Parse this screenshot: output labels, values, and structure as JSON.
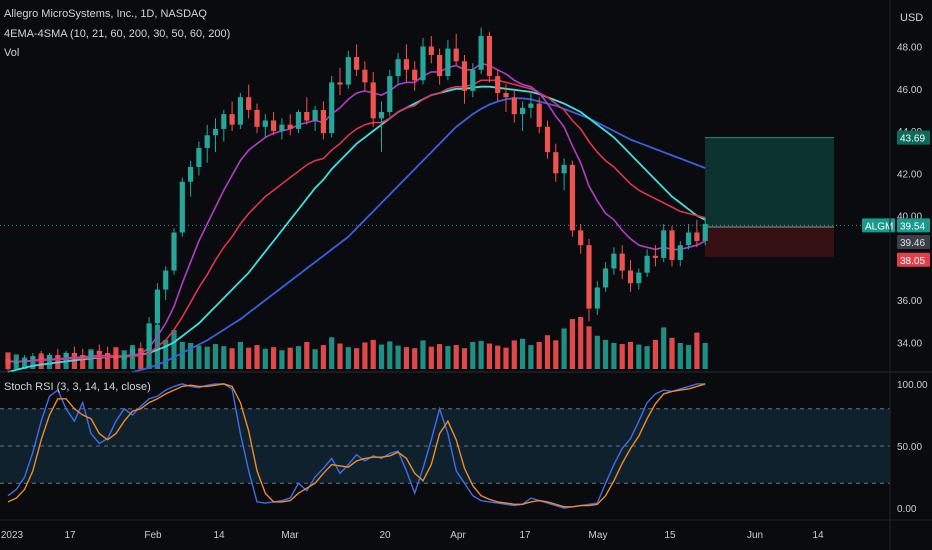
{
  "header": {
    "title": "Allegro MicroSystems, Inc., 1D, NASDAQ",
    "indicator": "4EMA-4SMA (10, 21, 60, 200, 30, 50, 60, 200)",
    "volume_label": "Vol",
    "currency": "USD",
    "stoch_label": "Stoch RSI (3, 3, 14, 14, close)"
  },
  "colors": {
    "bg": "#0a0b0f",
    "up": "#26a69a",
    "down": "#ef5350",
    "vol_up": "#1f8f84",
    "vol_down": "#e0484a",
    "ema10": "#b43cc8",
    "ema21": "#e0334f",
    "sma30": "#3ee0e0",
    "sma50": "#3a5fe0",
    "k_line": "#3f6ee8",
    "d_line": "#ef8a2c",
    "stoch_band": "#0e2431",
    "target_zone": "#0d3a33",
    "stop_zone": "#3b1215"
  },
  "chart_data": [
    {
      "type": "candlestick",
      "title": "Allegro MicroSystems, Inc., 1D, NASDAQ",
      "ylabel": "USD",
      "ylim": [
        32.6,
        50.2
      ],
      "y_ticks": [
        "48.00",
        "46.00",
        "44.00",
        "42.00",
        "40.00",
        "38.00",
        "36.00",
        "34.00"
      ],
      "x_ticks": [
        "2023",
        "17",
        "Feb",
        "14",
        "Mar",
        "20",
        "Apr",
        "17",
        "May",
        "15",
        "Jun",
        "14"
      ],
      "price_tags": {
        "symbol": "ALGM",
        "last": "39.54",
        "target": "43.69",
        "entry": "39.46",
        "stop": "38.05"
      },
      "ohlc": [
        [
          33.2,
          33.4,
          32.6,
          33.0
        ],
        [
          33.0,
          33.3,
          32.7,
          33.1
        ],
        [
          33.1,
          33.4,
          32.8,
          33.2
        ],
        [
          33.2,
          33.5,
          32.9,
          33.3
        ],
        [
          33.3,
          33.6,
          33.0,
          33.2
        ],
        [
          33.2,
          33.5,
          32.9,
          33.4
        ],
        [
          33.4,
          33.7,
          33.1,
          33.3
        ],
        [
          33.3,
          33.6,
          33.0,
          33.5
        ],
        [
          33.5,
          33.8,
          33.2,
          33.4
        ],
        [
          33.4,
          33.7,
          33.1,
          33.3
        ],
        [
          33.3,
          33.6,
          33.0,
          33.6
        ],
        [
          33.6,
          33.9,
          33.3,
          33.5
        ],
        [
          33.5,
          33.8,
          33.2,
          33.4
        ],
        [
          33.4,
          33.7,
          33.1,
          33.2
        ],
        [
          33.2,
          33.5,
          32.9,
          33.4
        ],
        [
          33.4,
          33.8,
          33.2,
          33.7
        ],
        [
          33.7,
          34.0,
          33.4,
          33.6
        ],
        [
          33.6,
          35.2,
          33.5,
          34.9
        ],
        [
          34.9,
          36.8,
          34.6,
          36.5
        ],
        [
          36.5,
          37.6,
          36.0,
          37.4
        ],
        [
          37.4,
          39.4,
          37.2,
          39.2
        ],
        [
          39.2,
          41.8,
          39.0,
          41.6
        ],
        [
          41.6,
          42.6,
          40.9,
          42.3
        ],
        [
          42.3,
          43.5,
          41.9,
          43.2
        ],
        [
          43.2,
          44.3,
          42.5,
          43.8
        ],
        [
          43.8,
          44.6,
          43.0,
          44.1
        ],
        [
          44.1,
          45.0,
          43.5,
          44.8
        ],
        [
          44.8,
          45.4,
          44.0,
          44.3
        ],
        [
          44.3,
          45.8,
          44.1,
          45.6
        ],
        [
          45.6,
          46.2,
          44.6,
          45.0
        ],
        [
          45.0,
          45.3,
          43.9,
          44.2
        ],
        [
          44.2,
          44.8,
          43.7,
          44.5
        ],
        [
          44.5,
          44.9,
          43.8,
          44.0
        ],
        [
          44.0,
          44.6,
          43.6,
          44.3
        ],
        [
          44.3,
          44.8,
          43.8,
          44.1
        ],
        [
          44.1,
          45.0,
          43.9,
          44.9
        ],
        [
          44.9,
          45.6,
          44.3,
          44.5
        ],
        [
          44.5,
          45.2,
          44.0,
          45.0
        ],
        [
          45.0,
          45.4,
          43.6,
          43.9
        ],
        [
          43.9,
          46.6,
          43.7,
          46.3
        ],
        [
          46.3,
          47.0,
          45.7,
          46.2
        ],
        [
          46.2,
          47.8,
          46.0,
          47.5
        ],
        [
          47.5,
          48.1,
          46.6,
          46.9
        ],
        [
          46.9,
          47.3,
          45.9,
          46.3
        ],
        [
          46.3,
          46.8,
          44.2,
          44.6
        ],
        [
          44.6,
          45.4,
          43.0,
          44.9
        ],
        [
          44.9,
          46.9,
          44.7,
          46.6
        ],
        [
          46.6,
          47.7,
          46.2,
          47.4
        ],
        [
          47.4,
          48.1,
          46.3,
          46.9
        ],
        [
          46.9,
          47.3,
          45.9,
          46.4
        ],
        [
          46.4,
          48.4,
          46.2,
          48.0
        ],
        [
          48.0,
          48.5,
          47.2,
          47.6
        ],
        [
          47.6,
          47.9,
          46.2,
          46.6
        ],
        [
          46.6,
          48.3,
          46.4,
          47.9
        ],
        [
          47.9,
          48.6,
          47.1,
          47.3
        ],
        [
          47.3,
          47.6,
          45.3,
          45.9
        ],
        [
          45.9,
          47.2,
          45.6,
          46.9
        ],
        [
          46.9,
          48.9,
          46.7,
          48.5
        ],
        [
          48.5,
          48.7,
          46.3,
          46.6
        ],
        [
          46.6,
          46.9,
          45.4,
          45.8
        ],
        [
          45.8,
          46.2,
          44.9,
          45.6
        ],
        [
          45.6,
          46.0,
          44.4,
          44.8
        ],
        [
          44.8,
          45.4,
          44.0,
          45.1
        ],
        [
          45.1,
          45.9,
          44.6,
          45.3
        ],
        [
          45.3,
          45.6,
          43.9,
          44.2
        ],
        [
          44.2,
          44.5,
          42.7,
          43.0
        ],
        [
          43.0,
          43.4,
          41.6,
          42.0
        ],
        [
          42.0,
          42.7,
          41.2,
          42.4
        ],
        [
          42.4,
          42.6,
          39.0,
          39.3
        ],
        [
          39.3,
          39.6,
          38.2,
          38.6
        ],
        [
          38.6,
          38.9,
          35.0,
          35.6
        ],
        [
          35.6,
          36.9,
          35.3,
          36.6
        ],
        [
          36.6,
          37.8,
          36.4,
          37.5
        ],
        [
          37.5,
          38.5,
          37.2,
          38.2
        ],
        [
          38.2,
          38.6,
          37.0,
          37.4
        ],
        [
          37.4,
          37.9,
          36.4,
          36.8
        ],
        [
          36.8,
          37.5,
          36.5,
          37.3
        ],
        [
          37.3,
          38.4,
          37.1,
          38.1
        ],
        [
          38.1,
          38.6,
          37.6,
          38.0
        ],
        [
          38.0,
          39.6,
          37.8,
          39.3
        ],
        [
          39.3,
          39.5,
          37.6,
          37.9
        ],
        [
          37.9,
          38.8,
          37.6,
          38.6
        ],
        [
          38.6,
          39.6,
          38.4,
          39.2
        ],
        [
          39.2,
          39.8,
          38.5,
          38.8
        ],
        [
          38.8,
          39.9,
          38.6,
          39.6
        ]
      ],
      "vol": [
        0.32,
        0.28,
        0.22,
        0.25,
        0.3,
        0.27,
        0.24,
        0.31,
        0.29,
        0.26,
        0.38,
        0.33,
        0.3,
        0.42,
        0.36,
        0.46,
        0.4,
        0.62,
        0.85,
        0.56,
        0.75,
        0.52,
        0.5,
        0.45,
        0.43,
        0.48,
        0.44,
        0.4,
        0.52,
        0.41,
        0.46,
        0.39,
        0.42,
        0.36,
        0.41,
        0.44,
        0.52,
        0.38,
        0.46,
        0.61,
        0.49,
        0.42,
        0.4,
        0.51,
        0.56,
        0.47,
        0.53,
        0.45,
        0.42,
        0.4,
        0.55,
        0.43,
        0.48,
        0.44,
        0.46,
        0.4,
        0.52,
        0.54,
        0.49,
        0.45,
        0.41,
        0.55,
        0.58,
        0.46,
        0.52,
        0.65,
        0.55,
        0.78,
        0.96,
        1.0,
        0.82,
        0.64,
        0.56,
        0.5,
        0.48,
        0.52,
        0.47,
        0.44,
        0.56,
        0.8,
        0.6,
        0.5,
        0.46,
        0.7,
        0.5
      ],
      "ema10": [
        33.1,
        33.1,
        33.1,
        33.15,
        33.2,
        33.2,
        33.22,
        33.26,
        33.3,
        33.3,
        33.35,
        33.38,
        33.38,
        33.35,
        33.36,
        33.42,
        33.45,
        33.75,
        34.3,
        34.9,
        35.7,
        36.8,
        37.8,
        38.8,
        39.6,
        40.4,
        41.2,
        41.9,
        42.6,
        43.1,
        43.4,
        43.7,
        43.9,
        44.0,
        44.1,
        44.3,
        44.4,
        44.5,
        44.4,
        44.8,
        45.1,
        45.5,
        45.8,
        45.9,
        45.8,
        45.7,
        45.9,
        46.2,
        46.3,
        46.3,
        46.6,
        46.8,
        46.8,
        47.0,
        47.1,
        46.9,
        46.9,
        47.2,
        47.1,
        46.9,
        46.7,
        46.4,
        46.2,
        46.1,
        45.8,
        45.3,
        44.7,
        44.2,
        43.3,
        42.5,
        41.4,
        40.7,
        40.1,
        39.8,
        39.3,
        38.9,
        38.6,
        38.5,
        38.4,
        38.5,
        38.4,
        38.4,
        38.5,
        38.6,
        38.8
      ],
      "ema21": [
        33.1,
        33.1,
        33.1,
        33.12,
        33.15,
        33.17,
        33.19,
        33.21,
        33.24,
        33.25,
        33.28,
        33.3,
        33.31,
        33.3,
        33.31,
        33.35,
        33.37,
        33.5,
        33.8,
        34.1,
        34.6,
        35.2,
        35.9,
        36.6,
        37.2,
        37.9,
        38.5,
        39.0,
        39.6,
        40.1,
        40.5,
        40.9,
        41.2,
        41.5,
        41.8,
        42.1,
        42.4,
        42.6,
        42.7,
        43.1,
        43.4,
        43.8,
        44.1,
        44.3,
        44.4,
        44.4,
        44.6,
        44.9,
        45.1,
        45.2,
        45.5,
        45.7,
        45.8,
        46.0,
        46.1,
        46.1,
        46.2,
        46.4,
        46.4,
        46.4,
        46.3,
        46.2,
        46.1,
        46.0,
        45.8,
        45.6,
        45.3,
        45.0,
        44.5,
        44.1,
        43.5,
        43.0,
        42.6,
        42.3,
        41.9,
        41.5,
        41.2,
        41.0,
        40.8,
        40.6,
        40.4,
        40.2,
        40.1,
        40.0,
        39.9
      ],
      "sma30": [
        32.6,
        32.7,
        32.8,
        32.9,
        32.95,
        33.0,
        33.05,
        33.1,
        33.15,
        33.2,
        33.25,
        33.28,
        33.3,
        33.32,
        33.35,
        33.4,
        33.42,
        33.5,
        33.65,
        33.8,
        34.0,
        34.3,
        34.6,
        34.9,
        35.3,
        35.7,
        36.1,
        36.5,
        36.9,
        37.3,
        37.8,
        38.3,
        38.8,
        39.3,
        39.8,
        40.3,
        40.8,
        41.3,
        41.7,
        42.2,
        42.6,
        43.0,
        43.4,
        43.7,
        44.0,
        44.3,
        44.6,
        44.9,
        45.1,
        45.3,
        45.5,
        45.7,
        45.8,
        45.9,
        46.0,
        46.0,
        46.05,
        46.1,
        46.1,
        46.05,
        46.0,
        45.95,
        45.9,
        45.85,
        45.75,
        45.6,
        45.45,
        45.3,
        45.1,
        44.9,
        44.6,
        44.3,
        44.0,
        43.7,
        43.3,
        42.9,
        42.5,
        42.1,
        41.7,
        41.3,
        40.9,
        40.6,
        40.3,
        40.0,
        39.8
      ],
      "sma50": [
        null,
        null,
        null,
        null,
        null,
        null,
        null,
        null,
        null,
        null,
        null,
        null,
        null,
        null,
        null,
        32.6,
        32.7,
        32.8,
        32.95,
        33.1,
        33.3,
        33.5,
        33.7,
        33.9,
        34.1,
        34.35,
        34.6,
        34.85,
        35.1,
        35.4,
        35.7,
        36.0,
        36.3,
        36.6,
        36.9,
        37.2,
        37.5,
        37.8,
        38.1,
        38.4,
        38.7,
        39.0,
        39.4,
        39.8,
        40.2,
        40.6,
        41.0,
        41.4,
        41.8,
        42.2,
        42.6,
        43.0,
        43.4,
        43.8,
        44.2,
        44.5,
        44.8,
        45.05,
        45.25,
        45.4,
        45.5,
        45.55,
        45.55,
        45.5,
        45.4,
        45.3,
        45.2,
        45.05,
        44.9,
        44.75,
        44.6,
        44.4,
        44.2,
        44.0,
        43.8,
        43.6,
        43.45,
        43.3,
        43.15,
        43.0,
        42.85,
        42.7,
        42.55,
        42.4,
        42.25
      ]
    },
    {
      "type": "line",
      "title": "Stoch RSI (3, 3, 14, 14, close)",
      "ylim": [
        -8,
        108
      ],
      "y_ticks": [
        "100.00",
        "50.00",
        "0.00"
      ],
      "bands": [
        20,
        50,
        80
      ],
      "series": [
        {
          "name": "K",
          "values": [
            10,
            15,
            25,
            45,
            70,
            90,
            95,
            80,
            70,
            85,
            60,
            52,
            56,
            70,
            80,
            75,
            82,
            88,
            90,
            95,
            98,
            100,
            98,
            97,
            99,
            100,
            100,
            96,
            60,
            30,
            5,
            4,
            5,
            6,
            8,
            20,
            14,
            25,
            32,
            40,
            28,
            35,
            43,
            38,
            42,
            40,
            44,
            46,
            30,
            12,
            32,
            55,
            80,
            60,
            30,
            20,
            10,
            6,
            5,
            4,
            3,
            2,
            3,
            8,
            6,
            4,
            2,
            0,
            1,
            2,
            3,
            4,
            20,
            35,
            48,
            56,
            70,
            85,
            92,
            95,
            94,
            96,
            98,
            100,
            100
          ]
        },
        {
          "name": "D",
          "values": [
            5,
            8,
            15,
            30,
            55,
            75,
            88,
            88,
            80,
            75,
            72,
            60,
            55,
            60,
            70,
            78,
            80,
            85,
            88,
            92,
            95,
            98,
            99,
            98,
            98,
            99,
            100,
            98,
            85,
            62,
            30,
            12,
            5,
            5,
            6,
            12,
            16,
            20,
            28,
            35,
            34,
            33,
            38,
            40,
            41,
            41,
            42,
            45,
            40,
            28,
            22,
            35,
            60,
            70,
            55,
            32,
            18,
            10,
            7,
            5,
            4,
            3,
            3,
            5,
            6,
            5,
            3,
            1,
            1,
            2,
            2,
            3,
            10,
            22,
            36,
            48,
            58,
            72,
            84,
            92,
            94,
            95,
            96,
            98,
            100
          ]
        }
      ]
    }
  ]
}
